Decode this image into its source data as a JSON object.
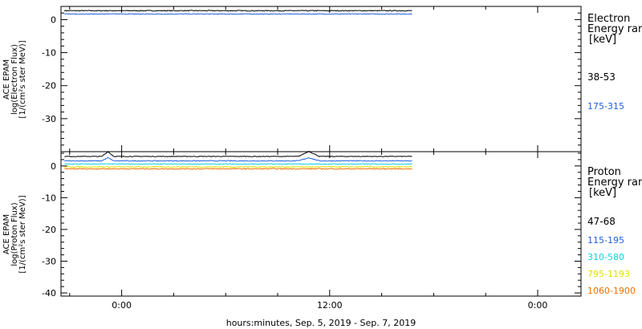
{
  "colors": {
    "black": "#000000",
    "blue": "#2060e0",
    "cyan": "#10d0e8",
    "yellow": "#e0e000",
    "orange": "#f07000"
  },
  "xlabel": "hours:minutes, Sep.  5, 2019 - Sep.  7, 2019",
  "chart_data": [
    {
      "type": "line",
      "ylabel": [
        "ACE EPAM",
        "log(Electron Flux)",
        "[1/(cm²s ster MeV)]"
      ],
      "legend_title": [
        "Electron",
        "Energy ranges",
        "[keV]"
      ],
      "ylim": [
        -40,
        4
      ],
      "yticks": [
        0,
        -10,
        -20,
        -30
      ],
      "xlim": [
        -3.5,
        26.5
      ],
      "xticks": [
        0,
        12,
        24
      ],
      "xticklabels": [
        "0:00",
        "12:00",
        "0:00"
      ],
      "x_range": [
        -3.3,
        16.8
      ],
      "series": [
        {
          "name": "38-53",
          "color": "#000000",
          "level": 2.7,
          "noise": 0.25,
          "bumps": []
        },
        {
          "name": "175-315",
          "color": "#2060e0",
          "level": 1.7,
          "noise": 0.2,
          "bumps": []
        }
      ]
    },
    {
      "type": "line",
      "ylabel": [
        "ACE EPAM",
        "log(Proton Flux)",
        "[1/(cm²s ster MeV)]"
      ],
      "legend_title": [
        "Proton",
        "Energy ranges",
        "[keV]"
      ],
      "ylim": [
        -41,
        4.5
      ],
      "yticks": [
        0,
        -10,
        -20,
        -30,
        -40
      ],
      "xlim": [
        -3.5,
        26.5
      ],
      "xticks": [
        0,
        12,
        24
      ],
      "xticklabels": [
        "0:00",
        "12:00",
        "0:00"
      ],
      "x_range": [
        -3.3,
        16.8
      ],
      "series": [
        {
          "name": "47-68",
          "color": "#000000",
          "level": 3.0,
          "noise": 0.2,
          "bumps": [
            [
              -0.8,
              0.35,
              1.5
            ],
            [
              10.8,
              0.6,
              1.6
            ]
          ]
        },
        {
          "name": "115-195",
          "color": "#2060e0",
          "level": 1.6,
          "noise": 0.25,
          "bumps": [
            [
              -0.8,
              0.35,
              1.0
            ],
            [
              10.8,
              0.6,
              1.0
            ]
          ]
        },
        {
          "name": "310-580",
          "color": "#10d0e8",
          "level": 0.6,
          "noise": 0.25,
          "bumps": []
        },
        {
          "name": "795-1193",
          "color": "#e0e000",
          "level": -0.3,
          "noise": 0.3,
          "bumps": []
        },
        {
          "name": "1060-1900",
          "color": "#f07000",
          "level": -0.9,
          "noise": 0.3,
          "bumps": []
        }
      ]
    }
  ]
}
